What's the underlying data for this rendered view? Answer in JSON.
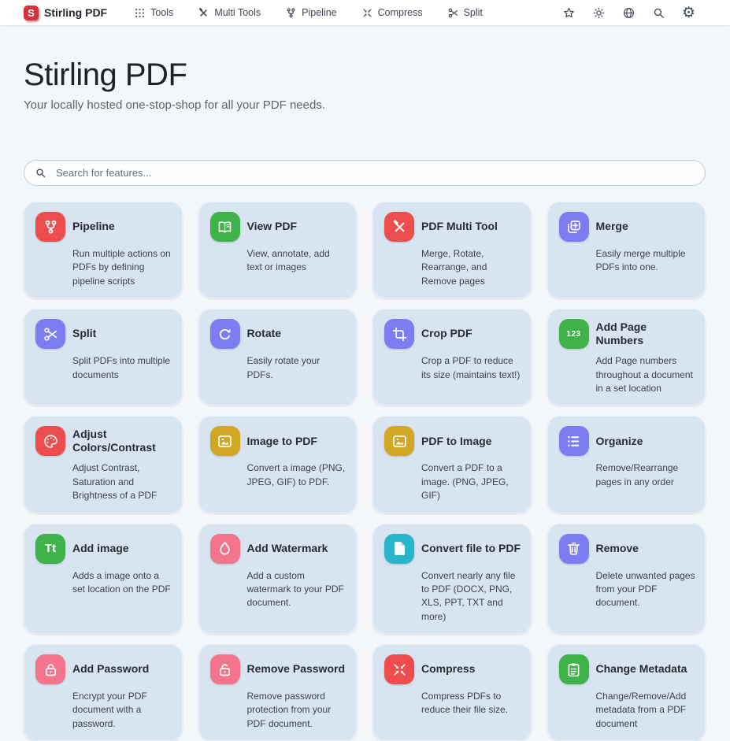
{
  "navbar": {
    "brand": {
      "label": "Stirling PDF",
      "logo_letter": "S",
      "logo_color": "#d5323f"
    },
    "items": [
      {
        "label": "Tools",
        "icon": "apps-grid-icon"
      },
      {
        "label": "Multi Tools",
        "icon": "multi-tools-icon"
      },
      {
        "label": "Pipeline",
        "icon": "pipeline-icon"
      },
      {
        "label": "Compress",
        "icon": "compress-icon"
      },
      {
        "label": "Split",
        "icon": "scissors-icon"
      }
    ],
    "action_icons": [
      "star-icon",
      "theme-toggle-icon",
      "language-icon",
      "search-icon",
      "settings-icon"
    ]
  },
  "hero": {
    "title": "Stirling PDF",
    "subtitle": "Your locally hosted one-stop-shop for all your PDF needs."
  },
  "search": {
    "placeholder": "Search for features..."
  },
  "colors": {
    "red": "#ee4d4d",
    "green": "#3fb24a",
    "purple": "#7c7df0",
    "gold": "#d2a726",
    "pink": "#f4748c",
    "cyan": "#27b5c9",
    "card_bg": "#d8e5f1",
    "page_bg": "#f4f7fa"
  },
  "cards": [
    {
      "title": "Pipeline",
      "description": "Run multiple actions on PDFs by defining pipeline scripts",
      "icon": "pipeline-icon",
      "icon_color": "#ee4d4d"
    },
    {
      "title": "View PDF",
      "description": "View, annotate, add text or images",
      "icon": "book-open-icon",
      "icon_color": "#3fb24a"
    },
    {
      "title": "PDF Multi Tool",
      "description": "Merge, Rotate, Rearrange, and Remove pages",
      "icon": "tools-icon",
      "icon_color": "#ee4d4d"
    },
    {
      "title": "Merge",
      "description": "Easily merge multiple PDFs into one.",
      "icon": "merge-icon",
      "icon_color": "#7c7df0"
    },
    {
      "title": "Split",
      "description": "Split PDFs into multiple documents",
      "icon": "scissors-icon",
      "icon_color": "#7c7df0"
    },
    {
      "title": "Rotate",
      "description": "Easily rotate your PDFs.",
      "icon": "rotate-icon",
      "icon_color": "#7c7df0"
    },
    {
      "title": "Crop PDF",
      "description": "Crop a PDF to reduce its size (maintains text!)",
      "icon": "crop-icon",
      "icon_color": "#7c7df0"
    },
    {
      "title": "Add Page Numbers",
      "description": "Add Page numbers throughout a document in a set location",
      "icon": "numbers-123-icon",
      "icon_color": "#3fb24a",
      "icon_text": "123"
    },
    {
      "title": "Adjust Colors/Contrast",
      "description": "Adjust Contrast, Saturation and Brightness of a PDF",
      "icon": "palette-icon",
      "icon_color": "#ee4d4d"
    },
    {
      "title": "Image to PDF",
      "description": "Convert a image (PNG, JPEG, GIF) to PDF.",
      "icon": "image-icon",
      "icon_color": "#d2a726"
    },
    {
      "title": "PDF to Image",
      "description": "Convert a PDF to a image. (PNG, JPEG, GIF)",
      "icon": "image-icon",
      "icon_color": "#d2a726"
    },
    {
      "title": "Organize",
      "description": "Remove/Rearrange pages in any order",
      "icon": "list-icon",
      "icon_color": "#7c7df0"
    },
    {
      "title": "Add image",
      "description": "Adds a image onto a set location on the PDF",
      "icon": "text-icon",
      "icon_color": "#3fb24a",
      "icon_text": "Tt"
    },
    {
      "title": "Add Watermark",
      "description": "Add a custom watermark to your PDF document.",
      "icon": "droplet-icon",
      "icon_color": "#f4748c"
    },
    {
      "title": "Convert file to PDF",
      "description": "Convert nearly any file to PDF (DOCX, PNG, XLS, PPT, TXT and more)",
      "icon": "file-icon",
      "icon_color": "#27b5c9"
    },
    {
      "title": "Remove",
      "description": "Delete unwanted pages from your PDF document.",
      "icon": "trash-icon",
      "icon_color": "#7c7df0"
    },
    {
      "title": "Add Password",
      "description": "Encrypt your PDF document with a password.",
      "icon": "lock-icon",
      "icon_color": "#f4748c"
    },
    {
      "title": "Remove Password",
      "description": "Remove password protection from your PDF document.",
      "icon": "unlock-icon",
      "icon_color": "#f4748c"
    },
    {
      "title": "Compress",
      "description": "Compress PDFs to reduce their file size.",
      "icon": "compress-icon",
      "icon_color": "#ee4d4d"
    },
    {
      "title": "Change Metadata",
      "description": "Change/Remove/Add metadata from a PDF document",
      "icon": "clipboard-icon",
      "icon_color": "#3fb24a"
    }
  ]
}
